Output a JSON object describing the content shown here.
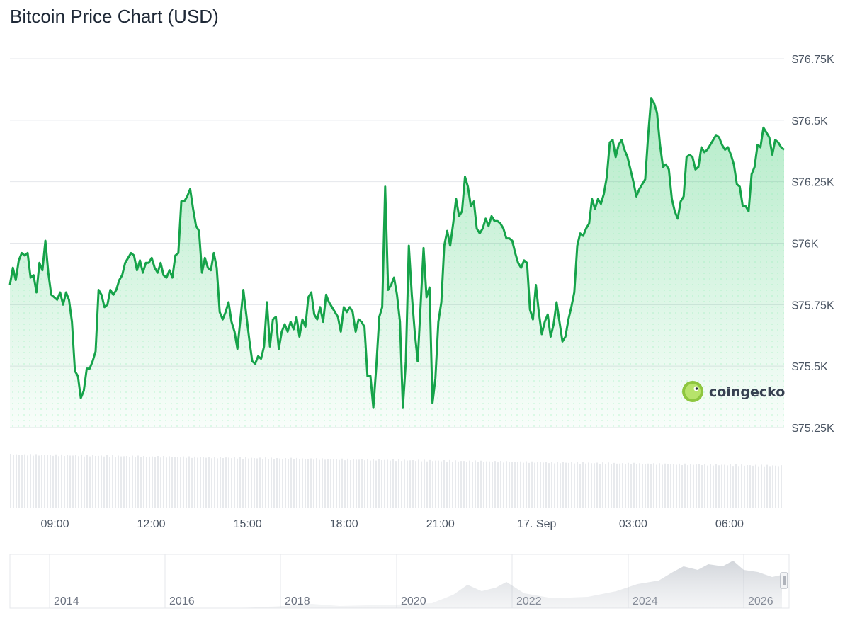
{
  "title": "Bitcoin Price Chart (USD)",
  "brand": "coingecko",
  "colors": {
    "line": "#16a34a",
    "fill": "#22c55e",
    "grid": "#e5e7eb",
    "volume": "#d1d5db"
  },
  "chart_data": {
    "type": "line",
    "title": "Bitcoin Price Chart (USD)",
    "ylabel": "",
    "xlabel": "",
    "ylim": [
      75250,
      76750
    ],
    "y_ticks": [
      {
        "value": 76750,
        "label": "$76.75K"
      },
      {
        "value": 76500,
        "label": "$76.5K"
      },
      {
        "value": 76250,
        "label": "$76.25K"
      },
      {
        "value": 76000,
        "label": "$76K"
      },
      {
        "value": 75750,
        "label": "$75.75K"
      },
      {
        "value": 75500,
        "label": "$75.5K"
      },
      {
        "value": 75250,
        "label": "$75.25K"
      }
    ],
    "x_range_hours": [
      7.6,
      31.7
    ],
    "x_ticks": [
      {
        "hour": 9,
        "label": "09:00"
      },
      {
        "hour": 12,
        "label": "12:00"
      },
      {
        "hour": 15,
        "label": "15:00"
      },
      {
        "hour": 18,
        "label": "18:00"
      },
      {
        "hour": 21,
        "label": "21:00"
      },
      {
        "hour": 24,
        "label": "17. Sep"
      },
      {
        "hour": 27,
        "label": "03:00"
      },
      {
        "hour": 30,
        "label": "06:00"
      }
    ],
    "series": [
      {
        "values": [
          75830,
          75900,
          75850,
          75930,
          75960,
          75950,
          75960,
          75860,
          75870,
          75800,
          75920,
          75890,
          76010,
          75880,
          75790,
          75780,
          75770,
          75800,
          75750,
          75800,
          75770,
          75680,
          75480,
          75460,
          75370,
          75400,
          75490,
          75490,
          75520,
          75560,
          75810,
          75790,
          75740,
          75750,
          75810,
          75790,
          75810,
          75850,
          75870,
          75920,
          75940,
          75960,
          75950,
          75890,
          75930,
          75880,
          75920,
          75920,
          75940,
          75900,
          75880,
          75920,
          75870,
          75860,
          75890,
          75860,
          75950,
          75960,
          76170,
          76170,
          76190,
          76220,
          76140,
          76070,
          76050,
          75880,
          75940,
          75900,
          75890,
          75960,
          75900,
          75720,
          75690,
          75720,
          75760,
          75680,
          75640,
          75570,
          75690,
          75810,
          75710,
          75610,
          75520,
          75510,
          75540,
          75530,
          75580,
          75760,
          75580,
          75690,
          75700,
          75570,
          75640,
          75670,
          75640,
          75680,
          75650,
          75700,
          75620,
          75690,
          75660,
          75780,
          75800,
          75710,
          75690,
          75740,
          75680,
          75790,
          75760,
          75740,
          75720,
          75700,
          75640,
          75740,
          75720,
          75740,
          75720,
          75640,
          75690,
          75680,
          75660,
          75460,
          75460,
          75330,
          75500,
          75700,
          75740,
          76230,
          75810,
          75830,
          75860,
          75790,
          75680,
          75330,
          75520,
          75990,
          75790,
          75640,
          75520,
          75750,
          75980,
          75780,
          75820,
          75350,
          75450,
          75680,
          75760,
          75990,
          76050,
          75990,
          76080,
          76180,
          76110,
          76130,
          76270,
          76230,
          76150,
          76170,
          76060,
          76040,
          76060,
          76100,
          76070,
          76110,
          76090,
          76090,
          76080,
          76060,
          76020,
          76020,
          76010,
          75960,
          75920,
          75900,
          75930,
          75920,
          75730,
          75690,
          75830,
          75720,
          75630,
          75680,
          75710,
          75620,
          75670,
          75760,
          75680,
          75600,
          75620,
          75690,
          75740,
          75800,
          75990,
          76040,
          76030,
          76060,
          76080,
          76180,
          76140,
          76180,
          76160,
          76200,
          76270,
          76410,
          76420,
          76350,
          76400,
          76420,
          76380,
          76350,
          76300,
          76250,
          76190,
          76220,
          76240,
          76260,
          76440,
          76590,
          76570,
          76530,
          76400,
          76310,
          76320,
          76300,
          76180,
          76130,
          76100,
          76170,
          76190,
          76350,
          76360,
          76350,
          76300,
          76310,
          76390,
          76370,
          76380,
          76400,
          76420,
          76440,
          76430,
          76400,
          76380,
          76390,
          76360,
          76320,
          76240,
          76230,
          76150,
          76150,
          76130,
          76280,
          76310,
          76400,
          76390,
          76470,
          76450,
          76430,
          76360,
          76420,
          76410,
          76390,
          76380
        ]
      }
    ]
  },
  "navigator": {
    "labels": [
      "2014",
      "2016",
      "2018",
      "2020",
      "2022",
      "2024",
      "2026"
    ]
  }
}
